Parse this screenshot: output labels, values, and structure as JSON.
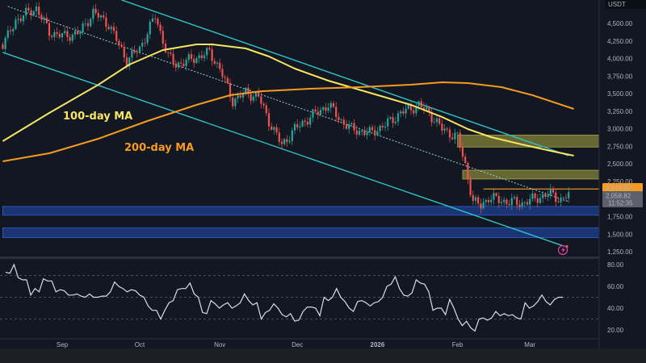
{
  "chart_data": [
    {
      "type": "candlestick",
      "currency_label": "USDT",
      "y_ticks": [
        "4,500.00",
        "4,250.00",
        "4,000.00",
        "3,750.00",
        "3,500.00",
        "3,250.00",
        "3,000.00",
        "2,750.00",
        "2,500.00",
        "2,250.00",
        "1,750.00",
        "1,500.00",
        "1,250.00"
      ],
      "y_tick_values": [
        4500,
        4250,
        4000,
        3750,
        3500,
        3250,
        3000,
        2750,
        2500,
        2250,
        1750,
        1500,
        1250
      ],
      "ylim": [
        1200,
        4800
      ],
      "x_ticks": [
        {
          "label": "Sep",
          "date": "2025-09-01",
          "bold": false
        },
        {
          "label": "Oct",
          "date": "2025-10-01",
          "bold": false
        },
        {
          "label": "Nov",
          "date": "2025-11-01",
          "bold": false
        },
        {
          "label": "Dec",
          "date": "2025-12-01",
          "bold": false
        },
        {
          "label": "2026",
          "date": "2026-01-01",
          "bold": true
        },
        {
          "label": "Feb",
          "date": "2026-02-01",
          "bold": false
        },
        {
          "label": "Mar",
          "date": "2026-03-01",
          "bold": false
        }
      ],
      "close_path": [
        [
          "2025-08-09",
          4200
        ],
        [
          "2025-08-11",
          4316
        ],
        [
          "2025-08-14",
          4546
        ],
        [
          "2025-08-22",
          4718
        ],
        [
          "2025-08-27",
          4374
        ],
        [
          "2025-09-02",
          4316
        ],
        [
          "2025-09-08",
          4374
        ],
        [
          "2025-09-13",
          4660
        ],
        [
          "2025-09-19",
          4488
        ],
        [
          "2025-09-26",
          3972
        ],
        [
          "2025-10-01",
          4144
        ],
        [
          "2025-10-07",
          4603
        ],
        [
          "2025-10-12",
          4029
        ],
        [
          "2025-10-15",
          3914
        ],
        [
          "2025-10-20",
          3972
        ],
        [
          "2025-10-28",
          4087
        ],
        [
          "2025-11-01",
          3857
        ],
        [
          "2025-11-06",
          3398
        ],
        [
          "2025-11-11",
          3513
        ],
        [
          "2025-11-16",
          3455
        ],
        [
          "2025-11-20",
          3111
        ],
        [
          "2025-11-25",
          2767
        ],
        [
          "2025-11-30",
          2996
        ],
        [
          "2025-12-06",
          3168
        ],
        [
          "2025-12-13",
          3340
        ],
        [
          "2025-12-18",
          3111
        ],
        [
          "2025-12-22",
          2996
        ],
        [
          "2025-12-29",
          2939
        ],
        [
          "2026-01-04",
          3053
        ],
        [
          "2026-01-10",
          3226
        ],
        [
          "2026-01-17",
          3340
        ],
        [
          "2026-01-21",
          3226
        ],
        [
          "2026-01-26",
          2996
        ],
        [
          "2026-02-01",
          2881
        ],
        [
          "2026-02-04",
          2480
        ],
        [
          "2026-02-07",
          1963
        ],
        [
          "2026-02-10",
          1906
        ],
        [
          "2026-02-13",
          2020
        ],
        [
          "2026-02-20",
          1963
        ],
        [
          "2026-02-26",
          1940
        ],
        [
          "2026-03-04",
          2020
        ],
        [
          "2026-03-09",
          2078
        ],
        [
          "2026-03-13",
          1986
        ],
        [
          "2026-03-16",
          2059
        ]
      ],
      "series": [
        {
          "name": "100-day MA",
          "color": "#f5e663",
          "values": [
            [
              "2025-08-09",
              2824
            ],
            [
              "2025-08-27",
              3226
            ],
            [
              "2025-09-15",
              3628
            ],
            [
              "2025-09-27",
              3914
            ],
            [
              "2025-10-10",
              4121
            ],
            [
              "2025-10-23",
              4202
            ],
            [
              "2025-10-29",
              4202
            ],
            [
              "2025-11-11",
              4144
            ],
            [
              "2025-11-20",
              4029
            ],
            [
              "2025-11-30",
              3857
            ],
            [
              "2025-12-13",
              3685
            ],
            [
              "2025-12-29",
              3513
            ],
            [
              "2026-01-14",
              3340
            ],
            [
              "2026-01-26",
              3168
            ],
            [
              "2026-02-05",
              2996
            ],
            [
              "2026-02-14",
              2881
            ],
            [
              "2026-02-27",
              2767
            ],
            [
              "2026-03-09",
              2686
            ],
            [
              "2026-03-18",
              2617
            ]
          ]
        },
        {
          "name": "200-day MA",
          "color": "#f59a23",
          "values": [
            [
              "2025-08-09",
              2537
            ],
            [
              "2025-08-27",
              2652
            ],
            [
              "2025-09-15",
              2858
            ],
            [
              "2025-10-04",
              3111
            ],
            [
              "2025-10-23",
              3340
            ],
            [
              "2025-11-05",
              3478
            ],
            [
              "2025-11-17",
              3535
            ],
            [
              "2025-12-06",
              3570
            ],
            [
              "2025-12-25",
              3593
            ],
            [
              "2026-01-14",
              3628
            ],
            [
              "2026-01-26",
              3662
            ],
            [
              "2026-02-05",
              3650
            ],
            [
              "2026-02-18",
              3593
            ],
            [
              "2026-03-02",
              3478
            ],
            [
              "2026-03-18",
              3283
            ]
          ]
        }
      ],
      "trendlines": [
        {
          "role": "channel-upper",
          "style": "solid",
          "color": "#2ec4c9",
          "from": [
            "2025-09-24",
            4833
          ],
          "to": [
            "2026-03-16",
            2617
          ]
        },
        {
          "role": "channel-lower",
          "style": "solid",
          "color": "#2ec4c9",
          "from": [
            "2025-08-09",
            4087
          ],
          "to": [
            "2026-03-14",
            1332
          ]
        },
        {
          "role": "channel-mid",
          "style": "dotted",
          "color": "#8fd3e0",
          "from": [
            "2025-08-11",
            4741
          ],
          "to": [
            "2026-03-16",
            1963
          ]
        }
      ],
      "zones": [
        {
          "kind": "resistance",
          "color": "#8a8a3a",
          "from_date": "2026-02-01",
          "low": 2740,
          "high": 2910
        },
        {
          "kind": "resistance",
          "color": "#8a8a3a",
          "from_date": "2026-02-03",
          "low": 2285,
          "high": 2410
        },
        {
          "kind": "support",
          "color": "#1f3f8f",
          "from_date": "2025-08-09",
          "low": 1770,
          "high": 1895
        },
        {
          "kind": "support",
          "color": "#1f3f8f",
          "from_date": "2025-08-09",
          "low": 1450,
          "high": 1590
        }
      ],
      "level_line": {
        "price": 2143,
        "from_date": "2026-02-11",
        "color": "#f59a23"
      },
      "labels": {
        "ma100": "100-day MA",
        "ma200": "200-day MA"
      },
      "price_tags": {
        "level": "2,143.00",
        "last_price": "2,058.82",
        "countdown": "11:52:35"
      },
      "colors": {
        "up": "#26a69a",
        "down": "#ef5350",
        "background": "#131722"
      }
    },
    {
      "type": "line",
      "indicator": "RSI",
      "ylim": [
        10,
        88
      ],
      "y_ticks": [
        "80.00",
        "60.00",
        "40.00",
        "20.00"
      ],
      "y_tick_values": [
        80,
        60,
        40,
        20
      ],
      "bands": [
        70,
        50,
        30
      ],
      "color": "#d8dce6",
      "values": [
        73,
        72,
        80,
        68,
        66,
        66,
        52,
        58,
        55,
        67,
        65,
        65,
        55,
        57,
        56,
        52,
        52,
        53,
        51,
        50,
        53,
        50,
        50,
        51,
        51,
        55,
        64,
        60,
        58,
        55,
        57,
        56,
        52,
        50,
        42,
        38,
        38,
        30,
        38,
        45,
        47,
        57,
        58,
        58,
        63,
        53,
        50,
        36,
        35,
        47,
        44,
        40,
        43,
        45,
        40,
        42,
        45,
        53,
        47,
        43,
        45,
        30,
        36,
        38,
        44,
        40,
        34,
        32,
        35,
        28,
        29,
        37,
        41,
        41,
        40,
        33,
        50,
        47,
        50,
        58,
        50,
        46,
        40,
        37,
        46,
        47,
        45,
        42,
        45,
        46,
        50,
        60,
        62,
        69,
        58,
        52,
        51,
        54,
        66,
        63,
        62,
        55,
        38,
        40,
        40,
        34,
        48,
        40,
        30,
        24,
        28,
        22,
        19,
        30,
        31,
        29,
        31,
        37,
        33,
        35,
        33,
        34,
        31,
        30,
        45,
        40,
        42,
        46,
        52,
        46,
        43,
        48,
        50,
        50
      ]
    }
  ]
}
